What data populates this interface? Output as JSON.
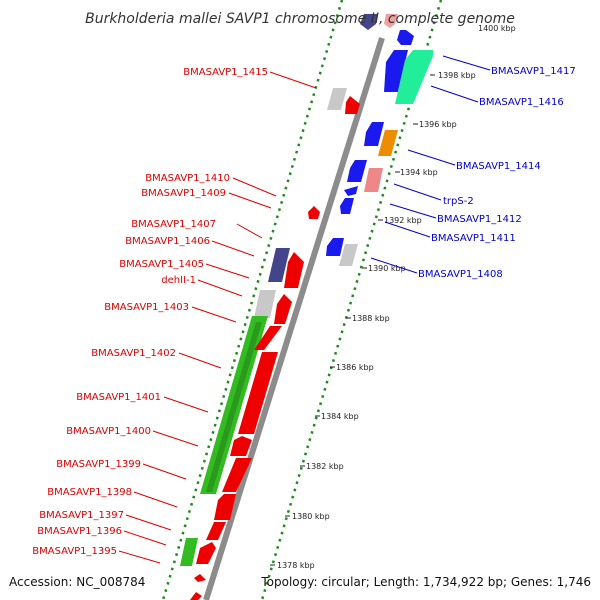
{
  "title": "Burkholderia mallei SAVP1 chromosome II, complete genome",
  "accession": "Accession: NC_008784",
  "topology": "Topology: circular; Length: 1,734,922 bp; Genes: 1,746",
  "colors": {
    "backbone": "#8c8c8c",
    "dots": "#1e8a1e",
    "left_label": "#dd0000",
    "right_label": "#0000cc",
    "gene_red": "#ee0000",
    "gene_green": "#33bb22",
    "gene_grey": "#c8c8c8",
    "gene_navy": "#44448a",
    "gene_blue": "#1a1aee",
    "gene_teal": "#22ee99",
    "gene_orange": "#ee8c00",
    "gene_pink": "#ee8888"
  },
  "ticks": [
    "1398 kbp",
    "1396 kbp",
    "1394 kbp",
    "1392 kbp",
    "1390 kbp",
    "1388 kbp",
    "1386 kbp",
    "1384 kbp",
    "1382 kbp",
    "1380 kbp",
    "1378 kbp",
    "1400 kbp"
  ],
  "left_labels": [
    "BMASAVP1_1415",
    "BMASAVP1_1410",
    "BMASAVP1_1409",
    "BMASAVP1_1407",
    "BMASAVP1_1406",
    "BMASAVP1_1405",
    "dehII-1",
    "BMASAVP1_1403",
    "BMASAVP1_1402",
    "BMASAVP1_1401",
    "BMASAVP1_1400",
    "BMASAVP1_1399",
    "BMASAVP1_1398",
    "BMASAVP1_1397",
    "BMASAVP1_1396",
    "BMASAVP1_1395"
  ],
  "right_labels": [
    "BMASAVP1_1417",
    "BMASAVP1_1416",
    "BMASAVP1_1414",
    "trpS-2",
    "BMASAVP1_1412",
    "BMASAVP1_1411",
    "BMASAVP1_1408"
  ]
}
